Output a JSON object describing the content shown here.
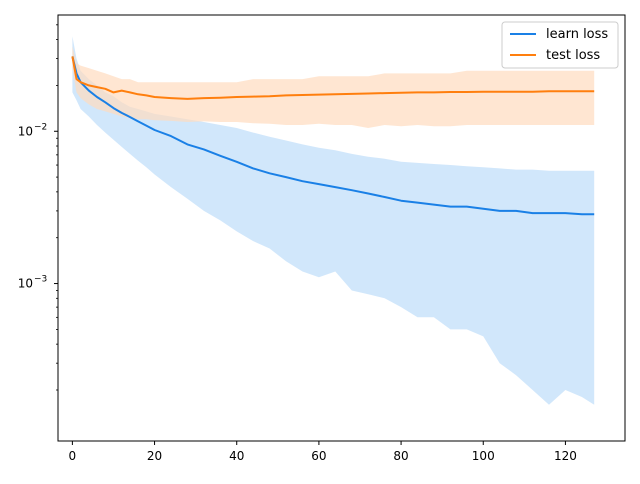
{
  "chart_data": {
    "type": "line",
    "title": "",
    "xlabel": "",
    "ylabel": "",
    "xlim": [
      -3.5,
      134.5
    ],
    "ylim": [
      9.25e-05,
      0.058
    ],
    "yscale": "log",
    "grid": false,
    "legend_position": "top-right",
    "x_ticks": [
      0,
      20,
      40,
      60,
      80,
      100,
      120
    ],
    "y_ticks": [
      {
        "value": 0.001,
        "base": "10",
        "exp": "−3"
      },
      {
        "value": 0.01,
        "base": "10",
        "exp": "−2"
      }
    ],
    "series": [
      {
        "name": "learn loss",
        "color": "#1a80e6",
        "fill_color": "#cce4fb",
        "x": [
          0,
          1,
          2,
          4,
          6,
          8,
          10,
          12,
          14,
          16,
          18,
          20,
          24,
          28,
          32,
          36,
          40,
          44,
          48,
          52,
          56,
          60,
          64,
          68,
          72,
          76,
          80,
          84,
          88,
          92,
          96,
          100,
          104,
          108,
          112,
          116,
          120,
          124,
          127
        ],
        "mean": [
          0.031,
          0.024,
          0.021,
          0.0185,
          0.0168,
          0.0155,
          0.0142,
          0.0132,
          0.0124,
          0.0116,
          0.0109,
          0.0102,
          0.0093,
          0.0082,
          0.0076,
          0.0069,
          0.0063,
          0.0057,
          0.0053,
          0.005,
          0.0047,
          0.0045,
          0.0043,
          0.0041,
          0.0039,
          0.0037,
          0.0035,
          0.0034,
          0.0033,
          0.0032,
          0.0032,
          0.0031,
          0.003,
          0.003,
          0.0029,
          0.0029,
          0.0029,
          0.00285,
          0.00285
        ],
        "upper": [
          0.042,
          0.03,
          0.025,
          0.022,
          0.02,
          0.018,
          0.017,
          0.0155,
          0.0145,
          0.014,
          0.0135,
          0.013,
          0.0125,
          0.012,
          0.0115,
          0.011,
          0.0105,
          0.0098,
          0.0092,
          0.0087,
          0.0082,
          0.0078,
          0.0075,
          0.0071,
          0.0068,
          0.0066,
          0.0063,
          0.0062,
          0.0061,
          0.006,
          0.0059,
          0.0058,
          0.0057,
          0.0056,
          0.0056,
          0.0055,
          0.0055,
          0.0055,
          0.0055
        ],
        "lower": [
          0.018,
          0.016,
          0.014,
          0.0125,
          0.011,
          0.0098,
          0.0088,
          0.0079,
          0.0071,
          0.0064,
          0.0058,
          0.0052,
          0.0043,
          0.0036,
          0.003,
          0.0026,
          0.0022,
          0.0019,
          0.0017,
          0.0014,
          0.0012,
          0.0011,
          0.0012,
          0.0009,
          0.00085,
          0.0008,
          0.0007,
          0.0006,
          0.0006,
          0.0005,
          0.0005,
          0.00045,
          0.0003,
          0.00025,
          0.0002,
          0.00016,
          0.0002,
          0.00018,
          0.00016
        ]
      },
      {
        "name": "test loss",
        "color": "#ff7f0e",
        "fill_color": "#ffdcbf",
        "x": [
          0,
          1,
          2,
          4,
          6,
          8,
          10,
          12,
          14,
          16,
          18,
          20,
          24,
          28,
          32,
          36,
          40,
          44,
          48,
          52,
          56,
          60,
          64,
          68,
          72,
          76,
          80,
          84,
          88,
          92,
          96,
          100,
          104,
          108,
          112,
          116,
          120,
          124,
          127
        ],
        "mean": [
          0.031,
          0.022,
          0.021,
          0.02,
          0.0195,
          0.019,
          0.018,
          0.0185,
          0.018,
          0.0175,
          0.0172,
          0.0168,
          0.0165,
          0.0163,
          0.0165,
          0.0166,
          0.0168,
          0.0169,
          0.017,
          0.0172,
          0.0173,
          0.0174,
          0.0175,
          0.0176,
          0.0177,
          0.0178,
          0.0179,
          0.018,
          0.018,
          0.0181,
          0.0181,
          0.0182,
          0.0182,
          0.0182,
          0.0182,
          0.0183,
          0.0183,
          0.0183,
          0.0183
        ],
        "upper": [
          0.036,
          0.028,
          0.027,
          0.026,
          0.025,
          0.024,
          0.023,
          0.022,
          0.022,
          0.021,
          0.021,
          0.021,
          0.021,
          0.021,
          0.021,
          0.021,
          0.021,
          0.022,
          0.022,
          0.022,
          0.022,
          0.023,
          0.023,
          0.023,
          0.023,
          0.024,
          0.024,
          0.024,
          0.024,
          0.024,
          0.025,
          0.025,
          0.025,
          0.025,
          0.025,
          0.025,
          0.025,
          0.025,
          0.025
        ],
        "lower": [
          0.026,
          0.018,
          0.0165,
          0.015,
          0.014,
          0.0135,
          0.013,
          0.0125,
          0.0122,
          0.012,
          0.012,
          0.0118,
          0.0117,
          0.0115,
          0.0116,
          0.0115,
          0.0115,
          0.0113,
          0.0112,
          0.011,
          0.011,
          0.0112,
          0.011,
          0.011,
          0.0105,
          0.011,
          0.0108,
          0.011,
          0.0108,
          0.0108,
          0.011,
          0.011,
          0.011,
          0.011,
          0.011,
          0.011,
          0.011,
          0.011,
          0.011
        ]
      }
    ]
  }
}
